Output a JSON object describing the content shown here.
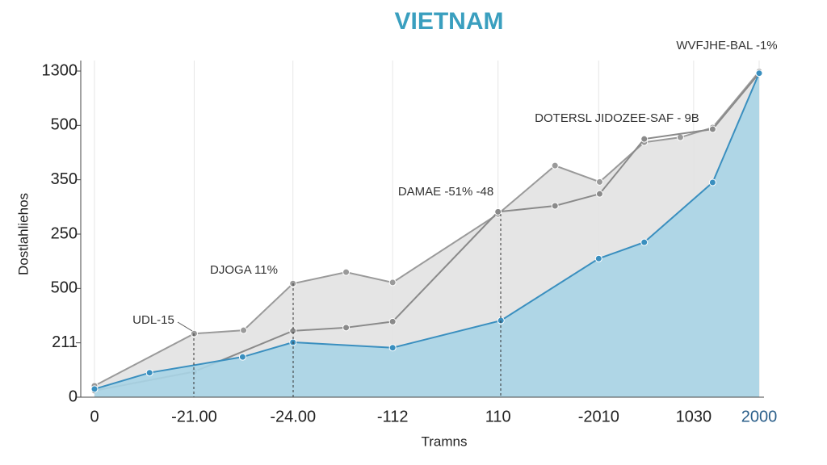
{
  "chart_data": {
    "type": "area",
    "title": "VIETNAM",
    "x_label": "Tramns",
    "y_label": "Dostlahliehos",
    "xlim": [
      0,
      7
    ],
    "xticks": [
      0,
      {
        "value": 1.05,
        "label": "-21.00"
      },
      {
        "value": 2.09,
        "label": "-24.00"
      },
      {
        "value": 3.14,
        "label": "-112"
      },
      {
        "value": 4.25,
        "label": "110"
      },
      {
        "value": 5.31,
        "label": "-2010"
      },
      {
        "value": 6.31,
        "label": "1030"
      },
      {
        "value": 7,
        "label": "2000"
      }
    ],
    "ylim": [
      0,
      6
    ],
    "yticks": [
      0,
      {
        "value": 1,
        "label": "211"
      },
      {
        "value": 2,
        "label": "500"
      },
      {
        "value": 3,
        "label": "250"
      },
      {
        "value": 4,
        "label": "350"
      },
      {
        "value": 5,
        "label": "500"
      },
      {
        "value": 6,
        "label": "1300"
      }
    ],
    "series": [
      {
        "color": "#9a9a9a",
        "fill": "#e2e2e2",
        "x": [
          0,
          1.05,
          1.57,
          2.09,
          2.65,
          3.14,
          4.25,
          4.85,
          5.32,
          5.79,
          6.17,
          6.51,
          7
        ],
        "values": [
          0.21,
          1.17,
          1.23,
          2.09,
          2.3,
          2.11,
          3.37,
          4.26,
          3.96,
          4.69,
          4.78,
          4.96,
          5.99
        ]
      },
      {
        "color": "#8a8a8a",
        "fill": "none",
        "x": [
          0,
          1.05,
          2.09,
          2.65,
          3.14,
          4.25,
          4.85,
          5.32,
          5.79,
          6.51,
          7
        ],
        "values": [
          0.12,
          0.47,
          1.22,
          1.28,
          1.39,
          3.41,
          3.52,
          3.74,
          4.75,
          4.93,
          5.96
        ]
      },
      {
        "color": "#3a8fbf",
        "fill": "#a9d4e6",
        "x": [
          0,
          0.58,
          1.56,
          2.09,
          3.14,
          4.28,
          5.31,
          5.79,
          6.51,
          7
        ],
        "values": [
          0.15,
          0.45,
          0.74,
          1.01,
          0.91,
          1.41,
          2.55,
          2.85,
          3.95,
          5.96
        ]
      }
    ],
    "annotations": [
      "UDL-15",
      "DJOGA 11%",
      "DAMAE -51% -48",
      "DOTERSL JIDOZEE-SAF - 9B",
      "WVFJHE-BAL -1%"
    ]
  }
}
